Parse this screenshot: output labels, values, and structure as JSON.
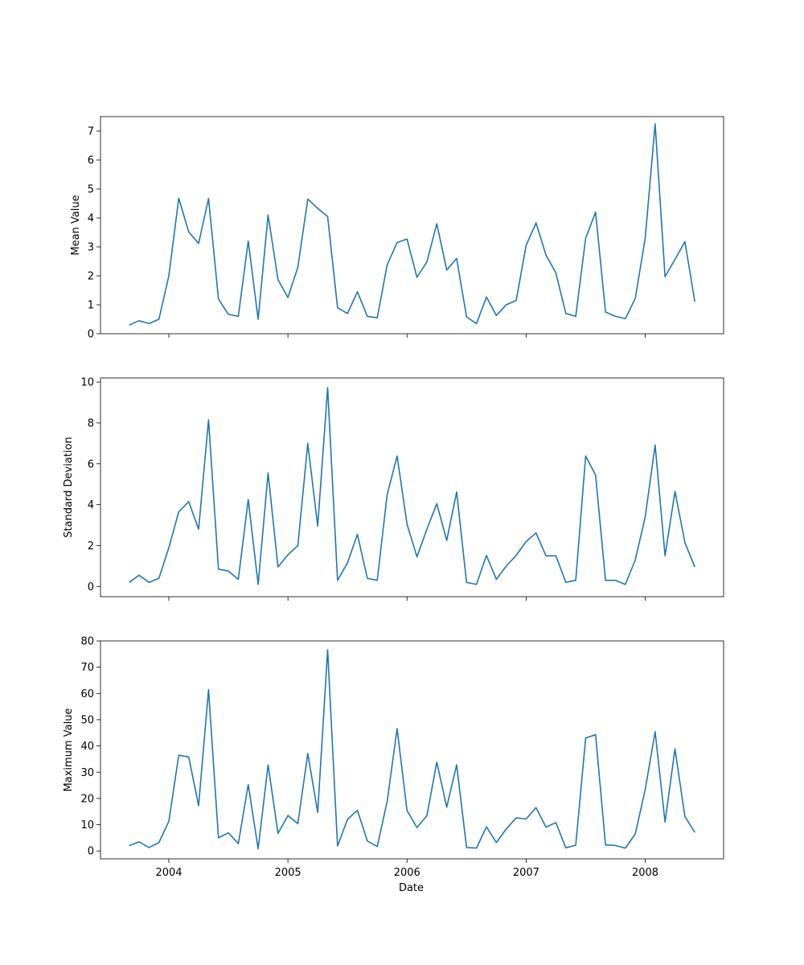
{
  "chart_data": [
    {
      "type": "line",
      "ylabel": "Mean Value",
      "ylim": [
        0,
        7.5
      ],
      "yticks": [
        0,
        1,
        2,
        3,
        4,
        5,
        6,
        7
      ],
      "color": "#1f77b4",
      "x": [
        "2003-09",
        "2003-10",
        "2003-11",
        "2003-12",
        "2004-01",
        "2004-02",
        "2004-03",
        "2004-04",
        "2004-05",
        "2004-06",
        "2004-07",
        "2004-08",
        "2004-09",
        "2004-10",
        "2004-11",
        "2004-12",
        "2005-01",
        "2005-02",
        "2005-03",
        "2005-04",
        "2005-05",
        "2005-06",
        "2005-07",
        "2005-08",
        "2005-09",
        "2005-10",
        "2005-11",
        "2005-12",
        "2006-01",
        "2006-02",
        "2006-03",
        "2006-04",
        "2006-05",
        "2006-06",
        "2006-07",
        "2006-08",
        "2006-09",
        "2006-10",
        "2006-11",
        "2006-12",
        "2007-01",
        "2007-02",
        "2007-03",
        "2007-04",
        "2007-05",
        "2007-06",
        "2007-07",
        "2007-08",
        "2007-09",
        "2007-10",
        "2007-11",
        "2007-12",
        "2008-01",
        "2008-02",
        "2008-03",
        "2008-04",
        "2008-05",
        "2008-06"
      ],
      "values": [
        0.3,
        0.45,
        0.35,
        0.5,
        2.0,
        4.68,
        3.52,
        3.12,
        4.67,
        1.2,
        0.67,
        0.6,
        3.2,
        0.5,
        4.1,
        1.87,
        1.25,
        2.3,
        4.65,
        4.33,
        4.05,
        0.9,
        0.7,
        1.45,
        0.6,
        0.55,
        2.38,
        3.15,
        3.27,
        1.95,
        2.48,
        3.8,
        2.2,
        2.6,
        0.58,
        0.35,
        1.27,
        0.63,
        1.0,
        1.15,
        3.05,
        3.83,
        2.72,
        2.1,
        0.7,
        0.6,
        3.3,
        4.2,
        0.75,
        0.6,
        0.52,
        1.22,
        3.3,
        7.25,
        1.97,
        2.57,
        3.18,
        1.1
      ]
    },
    {
      "type": "line",
      "ylabel": "Standard Deviation",
      "ylim": [
        -0.5,
        10.2
      ],
      "yticks": [
        0,
        2,
        4,
        6,
        8,
        10
      ],
      "color": "#1f77b4",
      "x": [
        "2003-09",
        "2003-10",
        "2003-11",
        "2003-12",
        "2004-01",
        "2004-02",
        "2004-03",
        "2004-04",
        "2004-05",
        "2004-06",
        "2004-07",
        "2004-08",
        "2004-09",
        "2004-10",
        "2004-11",
        "2004-12",
        "2005-01",
        "2005-02",
        "2005-03",
        "2005-04",
        "2005-05",
        "2005-06",
        "2005-07",
        "2005-08",
        "2005-09",
        "2005-10",
        "2005-11",
        "2005-12",
        "2006-01",
        "2006-02",
        "2006-03",
        "2006-04",
        "2006-05",
        "2006-06",
        "2006-07",
        "2006-08",
        "2006-09",
        "2006-10",
        "2006-11",
        "2006-12",
        "2007-01",
        "2007-02",
        "2007-03",
        "2007-04",
        "2007-05",
        "2007-06",
        "2007-07",
        "2007-08",
        "2007-09",
        "2007-10",
        "2007-11",
        "2007-12",
        "2008-01",
        "2008-02",
        "2008-03",
        "2008-04",
        "2008-05",
        "2008-06"
      ],
      "values": [
        0.2,
        0.55,
        0.2,
        0.4,
        1.9,
        3.65,
        4.15,
        2.8,
        8.15,
        0.85,
        0.75,
        0.35,
        4.25,
        0.1,
        5.55,
        0.95,
        1.55,
        2.0,
        7.0,
        2.95,
        9.72,
        0.3,
        1.15,
        2.55,
        0.4,
        0.3,
        4.5,
        6.38,
        3.05,
        1.45,
        2.8,
        4.05,
        2.25,
        4.62,
        0.2,
        0.1,
        1.52,
        0.35,
        1.0,
        1.52,
        2.2,
        2.62,
        1.5,
        1.5,
        0.2,
        0.3,
        6.38,
        5.45,
        0.3,
        0.3,
        0.1,
        1.3,
        3.4,
        6.92,
        1.5,
        4.65,
        2.15,
        0.95
      ]
    },
    {
      "type": "line",
      "xlabel": "Date",
      "ylabel": "Maximum Value",
      "ylim": [
        -3,
        80
      ],
      "yticks": [
        0,
        10,
        20,
        30,
        40,
        50,
        60,
        70,
        80
      ],
      "xticks": [
        "2004",
        "2005",
        "2006",
        "2007",
        "2008"
      ],
      "color": "#1f77b4",
      "x": [
        "2003-09",
        "2003-10",
        "2003-11",
        "2003-12",
        "2004-01",
        "2004-02",
        "2004-03",
        "2004-04",
        "2004-05",
        "2004-06",
        "2004-07",
        "2004-08",
        "2004-09",
        "2004-10",
        "2004-11",
        "2004-12",
        "2005-01",
        "2005-02",
        "2005-03",
        "2005-04",
        "2005-05",
        "2005-06",
        "2005-07",
        "2005-08",
        "2005-09",
        "2005-10",
        "2005-11",
        "2005-12",
        "2006-01",
        "2006-02",
        "2006-03",
        "2006-04",
        "2006-05",
        "2006-06",
        "2006-07",
        "2006-08",
        "2006-09",
        "2006-10",
        "2006-11",
        "2006-12",
        "2007-01",
        "2007-02",
        "2007-03",
        "2007-04",
        "2007-05",
        "2007-06",
        "2007-07",
        "2007-08",
        "2007-09",
        "2007-10",
        "2007-11",
        "2007-12",
        "2008-01",
        "2008-02",
        "2008-03",
        "2008-04",
        "2008-05",
        "2008-06"
      ],
      "values": [
        2.0,
        3.5,
        1.3,
        3.2,
        11.3,
        36.5,
        35.8,
        17.3,
        61.4,
        5.0,
        6.9,
        2.8,
        25.3,
        0.8,
        32.8,
        6.7,
        13.5,
        10.4,
        37.1,
        14.7,
        76.6,
        1.9,
        12.0,
        15.5,
        3.8,
        1.7,
        18.9,
        46.6,
        15.4,
        8.9,
        13.4,
        33.8,
        16.7,
        32.8,
        1.3,
        1.1,
        9.2,
        3.2,
        8.4,
        12.6,
        12.2,
        16.5,
        9.1,
        10.8,
        1.2,
        2.2,
        43.0,
        44.3,
        2.3,
        2.1,
        1.1,
        6.5,
        23.4,
        45.4,
        11.0,
        38.9,
        13.1,
        7.1
      ]
    }
  ]
}
